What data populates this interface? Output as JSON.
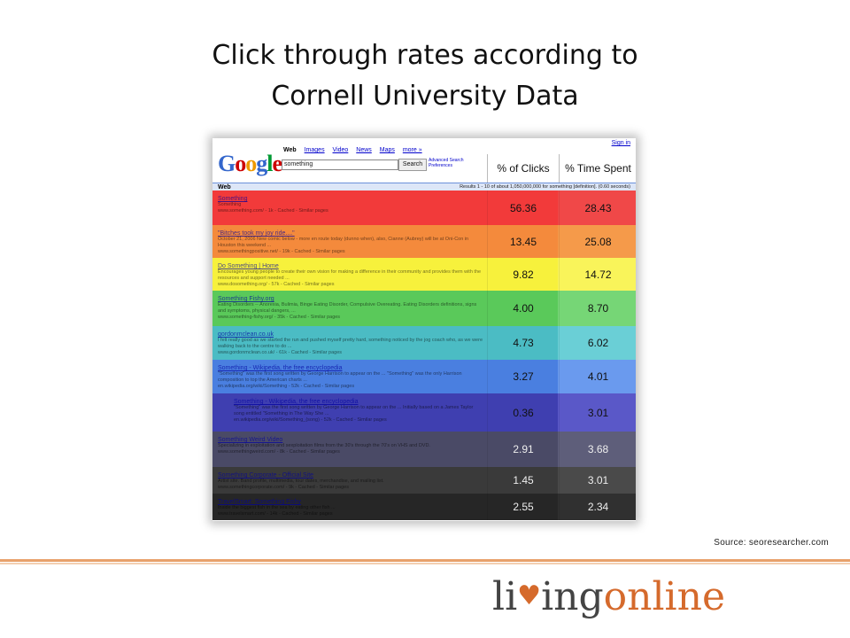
{
  "slide": {
    "title_line1": "Click through rates according to",
    "title_line2": "Cornell University Data",
    "source": "Source: seoresearcher.com"
  },
  "screenshot": {
    "logo": "Google",
    "nav": [
      "Web",
      "Images",
      "Video",
      "News",
      "Maps",
      "more »"
    ],
    "signin": "Sign in",
    "query": "something",
    "search_button": "Search",
    "advanced": "Advanced Search Preferences",
    "web_label": "Web",
    "results_text": "Results 1 - 10 of about 1,050,000,000 for something [definition]. (0.60 seconds)",
    "col_clicks": "% of Clicks",
    "col_time": "% Time Spent"
  },
  "rows": [
    {
      "title": "Something",
      "snippet": "Something",
      "url": "www.something.com/ - 1k - Cached - Similar pages",
      "clicks": "56.36",
      "time": "28.43",
      "color": "#f23a3a",
      "color2": "#f04848"
    },
    {
      "title": "\"Bitches took my joy ride....\"",
      "snippet": "October 21, 2006 New comic below - more en route today (dunno when), also, Cianne (Aubrey) will be at Oni-Con in Houston this weekend ...",
      "url": "www.somethingpositive.net/ - 19k - Cached - Similar pages",
      "clicks": "13.45",
      "time": "25.08",
      "color": "#f48a3c",
      "color2": "#f59a4a"
    },
    {
      "title": "Do Something | Home",
      "snippet": "Encourages young people to create their own vision for making a difference in their community and provides them with the resources and support needed ...",
      "url": "www.dosomething.org/ - 57k - Cached - Similar pages",
      "clicks": "9.82",
      "time": "14.72",
      "color": "#f7f13c",
      "color2": "#f9f45a"
    },
    {
      "title": "Something Fishy.org",
      "snippet": "Eating Disorders -- Anorexia, Bulimia, Binge Eating Disorder, Compulsive Overeating. Eating Disorders definitions, signs and symptoms, physical dangers, ...",
      "url": "www.something-fishy.org/ - 35k - Cached - Similar pages",
      "clicks": "4.00",
      "time": "8.70",
      "color": "#5ac95a",
      "color2": "#76d676"
    },
    {
      "title": "gordonmclean.co.uk",
      "snippet": "I felt really good as we started the run and pushed myself pretty hard, something noticed by the jog coach who, as we were walking back to the centre to do ...",
      "url": "www.gordonmclean.co.uk/ - 61k - Cached - Similar pages",
      "clicks": "4.73",
      "time": "6.02",
      "color": "#4bbcc4",
      "color2": "#6acfd6"
    },
    {
      "title": "Something - Wikipedia, the free encyclopedia",
      "snippet": "\"Something\" was the first song written by George Harrison to appear on the ... \"Something\" was the only Harrison composition to top the American charts ...",
      "url": "en.wikipedia.org/wiki/Something - 52k - Cached - Similar pages",
      "clicks": "3.27",
      "time": "4.01",
      "color": "#4a7fe0",
      "color2": "#6a9aee"
    },
    {
      "title": "Something - Wikipedia, the free encyclopedia",
      "snippet": "\"Something\" was the first song written by George Harrison to appear on the ... Initially based on a James Taylor song entitled \"Something in The Way She ...",
      "url": "en.wikipedia.org/wiki/Something_(song) - 52k - Cached - Similar pages",
      "clicks": "0.36",
      "time": "3.01",
      "color": "#3f3fb0",
      "color2": "#5a58c8",
      "indent": true
    },
    {
      "title": "Something Weird Video",
      "snippet": "Specializing in exploitation and sexploitation films from the 30's through the 70's on VHS and DVD.",
      "url": "www.somethingweird.com/ - 8k - Cached - Similar pages",
      "clicks": "2.91",
      "time": "3.68",
      "color": "#4a4a66",
      "color2": "#5e5e7a"
    },
    {
      "title": "Something Corporate - Official Site",
      "snippet": "Artist site. Band profile, multimedia, tour dates, merchandise, and mailing list.",
      "url": "www.somethingcorporate.com/ - 9k - Cached - Similar pages",
      "clicks": "1.45",
      "time": "3.01",
      "color": "#3a3a3a",
      "color2": "#4a4a4a"
    },
    {
      "title": "TravelSmart: Something Fishy",
      "snippet": "Inside the biggest fish in the sea by eating other fish ...",
      "url": "www.travelsmart.com/ - 14k - Cached - Similar pages",
      "clicks": "2.55",
      "time": "2.34",
      "color": "#262626",
      "color2": "#303030"
    }
  ],
  "brand": {
    "part1": "li",
    "heart": "♥",
    "part2": "ing",
    "part3": "online"
  }
}
